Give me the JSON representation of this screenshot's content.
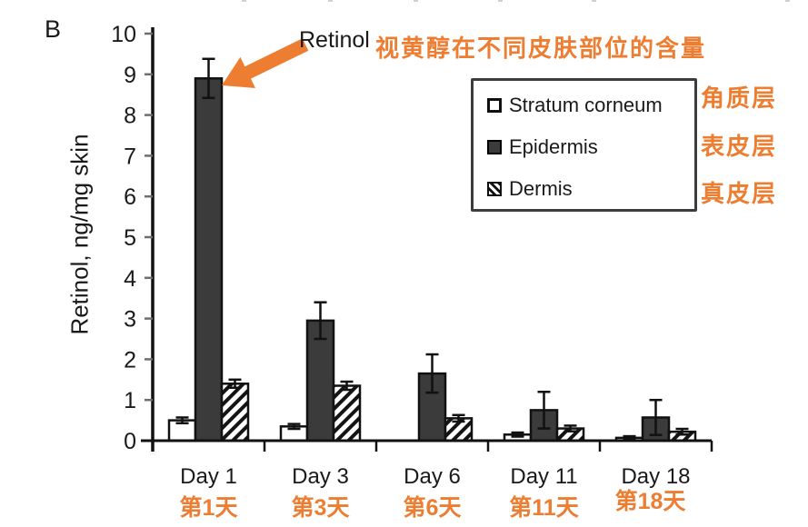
{
  "panel_label": "B",
  "annotation": {
    "retinol_label": "Retinol",
    "title_cn": "视黄醇在不同皮肤部位的含量"
  },
  "legend": {
    "position": "upper right",
    "items": [
      {
        "label": "Stratum corneum",
        "label_cn": "角质层",
        "swatch": "open-square"
      },
      {
        "label": "Epidermis",
        "label_cn": "表皮层",
        "swatch": "solid-dark-square"
      },
      {
        "label": "Dermis",
        "label_cn": "真皮层",
        "swatch": "hatched-square"
      }
    ]
  },
  "chart_data": {
    "type": "bar",
    "title": "Retinol 视黄醇在不同皮肤部位的含量",
    "ylabel": "Retinol, ng/mg skin",
    "xlabel": "",
    "ylim": [
      0,
      10
    ],
    "yticks": [
      0,
      1,
      2,
      3,
      4,
      5,
      6,
      7,
      8,
      9,
      10
    ],
    "grid": false,
    "legend_position": "upper right",
    "categories": [
      "Day 1",
      "Day 3",
      "Day 6",
      "Day 11",
      "Day 18"
    ],
    "categories_cn": [
      "第1天",
      "第3天",
      "第6天",
      "第11天",
      "第18天"
    ],
    "series": [
      {
        "name": "Stratum corneum",
        "fill": "white",
        "values": [
          0.5,
          0.35,
          0,
          0.15,
          0.07
        ],
        "errors": [
          0.07,
          0.06,
          0,
          0.05,
          0.04
        ]
      },
      {
        "name": "Epidermis",
        "fill": "dark-gray",
        "values": [
          8.9,
          2.95,
          1.65,
          0.75,
          0.57
        ],
        "errors": [
          0.48,
          0.45,
          0.47,
          0.45,
          0.43
        ]
      },
      {
        "name": "Dermis",
        "fill": "diagonal-hatch",
        "values": [
          1.4,
          1.35,
          0.55,
          0.3,
          0.22
        ],
        "errors": [
          0.1,
          0.1,
          0.08,
          0.07,
          0.07
        ]
      }
    ],
    "annotation_arrow": {
      "label": "Retinol",
      "points_to": "Day 1 Epidermis bar"
    }
  },
  "colors": {
    "accent_orange": "#ED7D31",
    "bar_dark": "#3B3B3B",
    "axis": "#111111",
    "tick_gray": "#6E6E6E"
  }
}
